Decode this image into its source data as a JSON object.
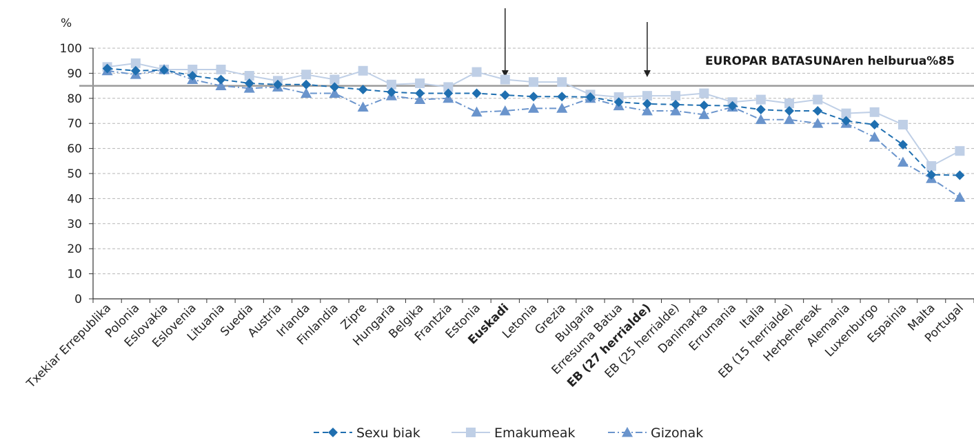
{
  "chart_data": {
    "type": "line",
    "y_unit_label": "%",
    "ylim": [
      0,
      100
    ],
    "yticks": [
      0,
      10,
      20,
      30,
      40,
      50,
      60,
      70,
      80,
      90,
      100
    ],
    "grid": "horizontal-dashed",
    "legend_position": "bottom-center",
    "categories": [
      "Txekiar Errepublika",
      "Polonia",
      "Eslovakia",
      "Eslovenia",
      "Lituania",
      "Suedia",
      "Austria",
      "Irlanda",
      "Finlandia",
      "Zipre",
      "Hungaria",
      "Belgika",
      "Frantzia",
      "Estonia",
      "Euskadi",
      "Letonia",
      "Grezia",
      "Bulgaria",
      "Erresuma Batua",
      "EB (27 herrialde)",
      "EB (25 herrialde)",
      "Danimarka",
      "Errumania",
      "Italia",
      "EB (15 herrialde)",
      "Herbehereak",
      "Alemania",
      "Luxenburgo",
      "Espainia",
      "Malta",
      "Portugal"
    ],
    "bold_categories": [
      "Euskadi",
      "EB (27 herrialde)"
    ],
    "arrow_categories": [
      "Euskadi",
      "EB (27 herrialde)"
    ],
    "reference_line": {
      "value": 85,
      "label": "EUROPAR BATASUNAren helburua%85",
      "color": "#9a9a9a"
    },
    "series": [
      {
        "name": "Sexu biak",
        "color": "#1f6fb0",
        "marker": "diamond",
        "dash": "8,5",
        "values": [
          91.9,
          91,
          91.3,
          89,
          87.5,
          86,
          85.5,
          85.5,
          84.5,
          83.5,
          82.5,
          82,
          82,
          82,
          81.3,
          80.7,
          80.7,
          80.5,
          78.5,
          77.8,
          77.5,
          77.2,
          77,
          75.5,
          75,
          75,
          71,
          69.5,
          61.5,
          49.5,
          49.3
        ]
      },
      {
        "name": "Emakumeak",
        "color": "#bfcfe6",
        "marker": "square",
        "dash": "",
        "values": [
          92.5,
          94,
          91.5,
          91.5,
          91.5,
          89,
          87,
          89.5,
          87.5,
          91,
          85.5,
          86,
          84.5,
          90.5,
          87.5,
          86.5,
          86.5,
          81.5,
          80.5,
          81,
          81,
          82,
          78.5,
          79.5,
          78,
          79.5,
          74,
          74.5,
          69.5,
          53,
          59
        ]
      },
      {
        "name": "Gizonak",
        "color": "#6a94cc",
        "marker": "triangle",
        "dash": "10,4,2,4",
        "values": [
          91,
          89.5,
          91.5,
          87.5,
          85,
          84,
          84.5,
          82,
          82,
          76.5,
          81,
          79.5,
          80,
          74.5,
          75,
          76,
          76,
          80,
          77,
          75,
          75,
          73.5,
          76.5,
          71.5,
          71.5,
          70,
          70,
          64.5,
          54.5,
          48,
          40.5
        ]
      }
    ]
  }
}
